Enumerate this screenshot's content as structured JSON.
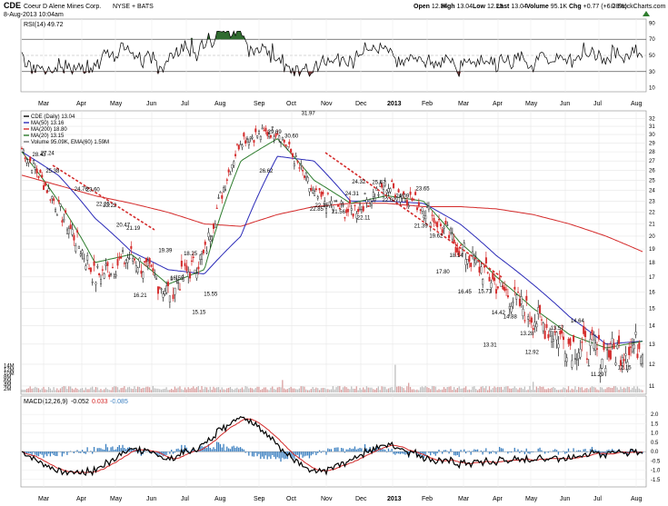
{
  "header": {
    "ticker": "CDE",
    "company": "Coeur D Alene Mines Corp.",
    "exchange": "NYSE + BATS",
    "date": "8-Aug-2013 10:04am",
    "copyright": "© StockCharts.com",
    "ohlc": [
      {
        "label": "Open",
        "value": "12.34"
      },
      {
        "label": "High",
        "value": "13.04"
      },
      {
        "label": "Low",
        "value": "12.25"
      },
      {
        "label": "Last",
        "value": "13.04"
      },
      {
        "label": "Volume",
        "value": "95.1K"
      },
      {
        "label": "Chg",
        "value": "+0.77 (+6.28%)"
      }
    ],
    "up_icon": "triangle-up-icon"
  },
  "rsi": {
    "label": "RSI(14) 49.72",
    "ticks": [
      "90",
      "70",
      "50",
      "30",
      "10"
    ],
    "overbought": 70,
    "oversold": 30
  },
  "price_panel": {
    "legend": [
      {
        "text": "CDE (Daily) 13.04",
        "color": "#000000"
      },
      {
        "text": "MA(50) 13.16",
        "color": "#2b2bb8"
      },
      {
        "text": "MA(200) 18.80",
        "color": "#d42a2a"
      },
      {
        "text": "MA(20) 13.15",
        "color": "#2e7d2e"
      },
      {
        "text": "Volume 95.09K, EMA(60) 1.59M",
        "color": "#777777"
      }
    ],
    "ticks": [
      "32",
      "31",
      "30",
      "29",
      "28",
      "27",
      "26",
      "25",
      "24",
      "23",
      "22",
      "21",
      "20",
      "19",
      "18",
      "17",
      "16",
      "15",
      "14",
      "13",
      "12",
      "11"
    ],
    "volume_ticks": [
      "14M",
      "12M",
      "10M",
      "8M",
      "6M",
      "4M",
      "2M"
    ],
    "annotations": [
      "31.97",
      "30.60",
      "29.69",
      "28.43",
      "27.24",
      "26.62",
      "25.38",
      "24.76",
      "23.60",
      "23.22",
      "22.25",
      "21.19",
      "20.47",
      "19.39",
      "18.25",
      "16.21",
      "16.55",
      "15.15",
      "15.55",
      "22.85",
      "22.15",
      "24.31",
      "21.56",
      "22.11",
      "24.32",
      "25.47",
      "22.62",
      "24.09",
      "23.65",
      "21.39",
      "19.62",
      "17.80",
      "18.14",
      "16.45",
      "15.71",
      "14.88",
      "14.42",
      "13.31",
      "13.28",
      "12.92",
      "13.57",
      "14.64",
      "11.29",
      "12.15"
    ]
  },
  "macd": {
    "label": "MACD(12,26,9)",
    "value1": "-0.052",
    "value2": "0.033",
    "value3": "-0.085",
    "ticks": [
      "2.0",
      "1.5",
      "1.0",
      "0.5",
      "0.0",
      "-0.5",
      "-1.0",
      "-1.5"
    ]
  },
  "xaxis": {
    "labels": [
      "Mar",
      "Apr",
      "May",
      "Jun",
      "Jul",
      "Aug",
      "Sep",
      "Oct",
      "Nov",
      "Dec",
      "2013",
      "Feb",
      "Mar",
      "Apr",
      "May",
      "Jun",
      "Jul",
      "Aug"
    ]
  },
  "colors": {
    "up": "#1a1a1a",
    "down": "#d42a2a",
    "ma50": "#2b2bb8",
    "ma200": "#d42a2a",
    "ma20": "#2e7d2e",
    "rsi_over": "#2f6b2f",
    "rsi_under": "#7a3e3e",
    "volume": "#bfbfbf",
    "macd_line": "#000000",
    "macd_signal": "#d42a2a",
    "histogram": "#3a7fc0",
    "trendline": "#d42a2a"
  },
  "chart_data": {
    "type": "line",
    "x": [
      "2012-03",
      "2012-04",
      "2012-05",
      "2012-06",
      "2012-07",
      "2012-08",
      "2012-09",
      "2012-10",
      "2012-11",
      "2012-12",
      "2013-01",
      "2013-02",
      "2013-03",
      "2013-04",
      "2013-05",
      "2013-06",
      "2013-07",
      "2013-08"
    ],
    "series": [
      {
        "name": "CDE (Daily)",
        "values": [
          28.4,
          22.3,
          17.0,
          18.5,
          16.0,
          18.5,
          29.5,
          30.5,
          23.5,
          22.0,
          24.5,
          22.5,
          19.0,
          16.5,
          14.5,
          13.0,
          12.5,
          13.04
        ]
      },
      {
        "name": "MA(50)",
        "values": [
          28.0,
          25.5,
          21.5,
          18.8,
          17.5,
          17.2,
          20.0,
          27.5,
          27.0,
          23.0,
          23.0,
          22.8,
          21.0,
          18.5,
          16.5,
          14.5,
          13.0,
          13.16
        ]
      },
      {
        "name": "MA(200)",
        "values": [
          25.5,
          24.5,
          23.5,
          22.8,
          22.0,
          21.0,
          20.8,
          21.8,
          22.5,
          22.8,
          22.8,
          22.5,
          22.5,
          22.3,
          21.8,
          21.0,
          20.0,
          18.8
        ]
      },
      {
        "name": "MA(20)",
        "values": [
          28.0,
          23.0,
          18.0,
          18.6,
          16.5,
          17.5,
          27.0,
          29.5,
          25.0,
          22.8,
          23.5,
          23.0,
          19.5,
          17.0,
          15.0,
          13.5,
          12.8,
          13.15
        ]
      }
    ],
    "ylim": [
      11,
      32
    ]
  }
}
